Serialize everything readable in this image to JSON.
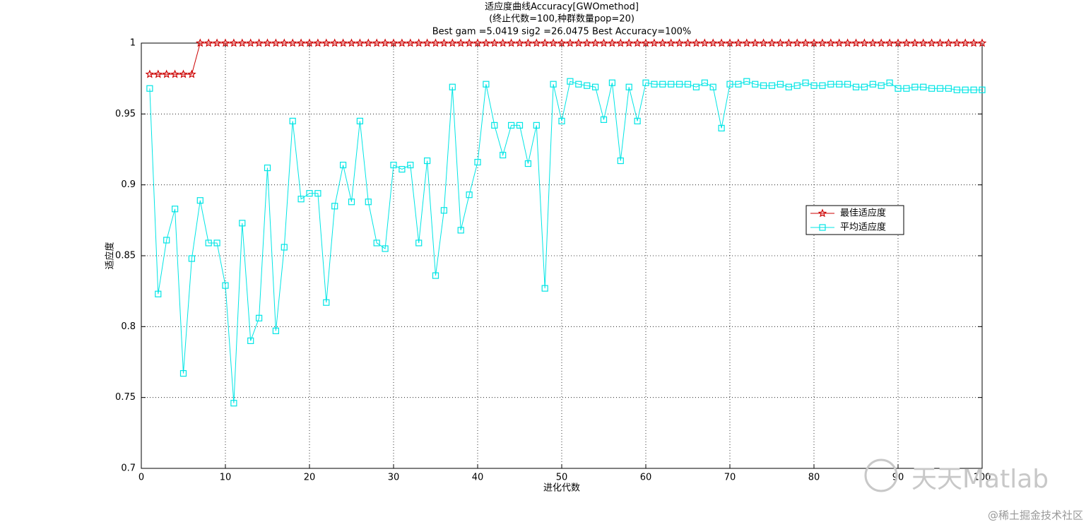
{
  "chart_data": {
    "type": "line",
    "title": "适应度曲线Accuracy[GWOmethod]",
    "subtitle": "(终止代数=100,种群数量pop=20)",
    "annotation": "Best gam =5.0419 sig2 =26.0475 Best Accuracy=100%",
    "x_label": "进化代数",
    "y_label": "适应度",
    "x": [
      1,
      2,
      3,
      4,
      5,
      6,
      7,
      8,
      9,
      10,
      11,
      12,
      13,
      14,
      15,
      16,
      17,
      18,
      19,
      20,
      21,
      22,
      23,
      24,
      25,
      26,
      27,
      28,
      29,
      30,
      31,
      32,
      33,
      34,
      35,
      36,
      37,
      38,
      39,
      40,
      41,
      42,
      43,
      44,
      45,
      46,
      47,
      48,
      49,
      50,
      51,
      52,
      53,
      54,
      55,
      56,
      57,
      58,
      59,
      60,
      61,
      62,
      63,
      64,
      65,
      66,
      67,
      68,
      69,
      70,
      71,
      72,
      73,
      74,
      75,
      76,
      77,
      78,
      79,
      80,
      81,
      82,
      83,
      84,
      85,
      86,
      87,
      88,
      89,
      90,
      91,
      92,
      93,
      94,
      95,
      96,
      97,
      98,
      99,
      100
    ],
    "series": [
      {
        "name": "最佳适应度",
        "color": "#cc0000",
        "marker": "star",
        "values": [
          0.978,
          0.978,
          0.978,
          0.978,
          0.978,
          0.978,
          1,
          1,
          1,
          1,
          1,
          1,
          1,
          1,
          1,
          1,
          1,
          1,
          1,
          1,
          1,
          1,
          1,
          1,
          1,
          1,
          1,
          1,
          1,
          1,
          1,
          1,
          1,
          1,
          1,
          1,
          1,
          1,
          1,
          1,
          1,
          1,
          1,
          1,
          1,
          1,
          1,
          1,
          1,
          1,
          1,
          1,
          1,
          1,
          1,
          1,
          1,
          1,
          1,
          1,
          1,
          1,
          1,
          1,
          1,
          1,
          1,
          1,
          1,
          1,
          1,
          1,
          1,
          1,
          1,
          1,
          1,
          1,
          1,
          1,
          1,
          1,
          1,
          1,
          1,
          1,
          1,
          1,
          1,
          1,
          1,
          1,
          1,
          1,
          1,
          1,
          1,
          1,
          1,
          1
        ]
      },
      {
        "name": "平均适应度",
        "color": "#00e5e5",
        "marker": "square",
        "values": [
          0.968,
          0.823,
          0.861,
          0.883,
          0.767,
          0.848,
          0.889,
          0.859,
          0.859,
          0.829,
          0.746,
          0.873,
          0.79,
          0.806,
          0.912,
          0.797,
          0.856,
          0.945,
          0.89,
          0.894,
          0.894,
          0.817,
          0.885,
          0.914,
          0.888,
          0.945,
          0.888,
          0.859,
          0.855,
          0.914,
          0.911,
          0.914,
          0.859,
          0.917,
          0.836,
          0.882,
          0.969,
          0.868,
          0.893,
          0.916,
          0.971,
          0.942,
          0.921,
          0.942,
          0.942,
          0.915,
          0.942,
          0.827,
          0.971,
          0.945,
          0.973,
          0.971,
          0.97,
          0.969,
          0.946,
          0.972,
          0.917,
          0.969,
          0.945,
          0.972,
          0.971,
          0.971,
          0.971,
          0.971,
          0.971,
          0.969,
          0.972,
          0.969,
          0.94,
          0.971,
          0.971,
          0.973,
          0.971,
          0.97,
          0.97,
          0.971,
          0.969,
          0.97,
          0.972,
          0.97,
          0.97,
          0.971,
          0.971,
          0.971,
          0.969,
          0.969,
          0.971,
          0.97,
          0.972,
          0.968,
          0.968,
          0.969,
          0.969,
          0.968,
          0.968,
          0.968,
          0.967,
          0.967,
          0.967,
          0.967
        ]
      }
    ],
    "xlim": [
      0,
      100
    ],
    "xticks": [
      0,
      10,
      20,
      30,
      40,
      50,
      60,
      70,
      80,
      90,
      100
    ],
    "ylim": [
      0.7,
      1
    ],
    "yticks": [
      0.7,
      0.75,
      0.8,
      0.85,
      0.9,
      0.95,
      1
    ],
    "grid": true,
    "legend_position": "right"
  },
  "watermark": {
    "brand": "天天Matlab",
    "source": "@稀土掘金技术社区"
  }
}
